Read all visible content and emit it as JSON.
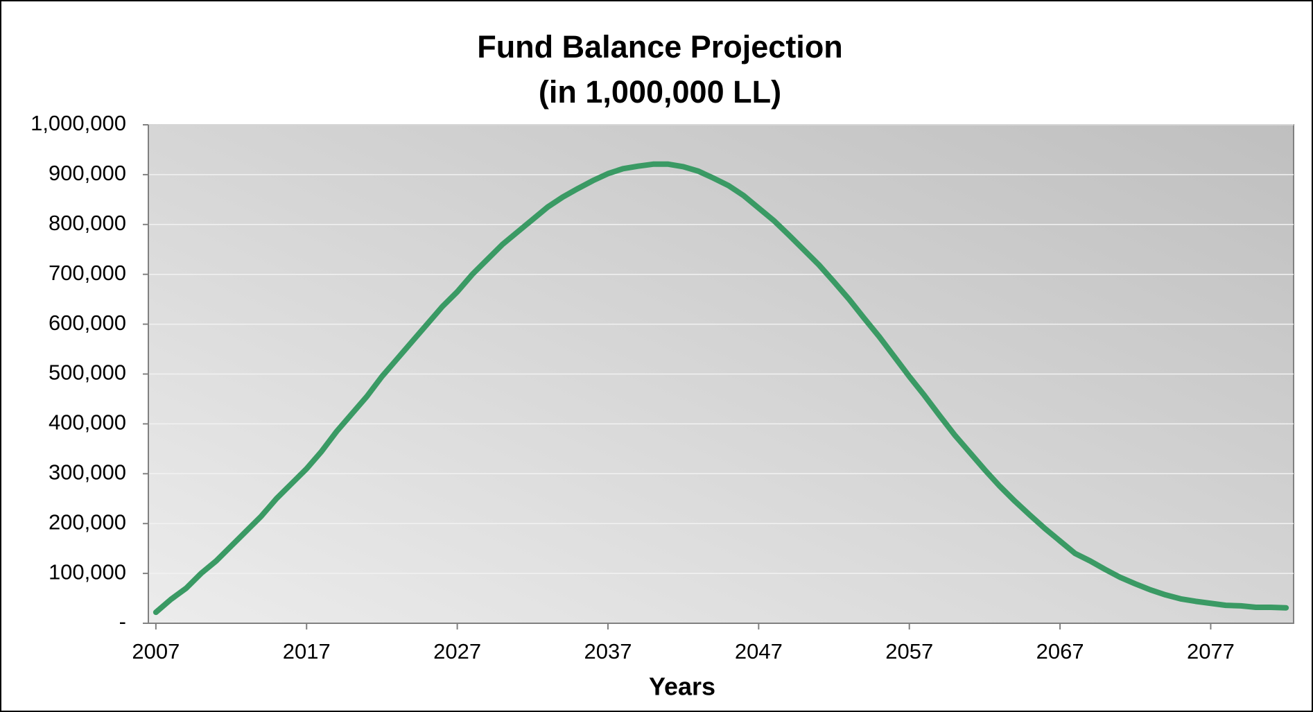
{
  "chart_data": {
    "type": "line",
    "title": "Fund Balance Projection",
    "subtitle": "(in 1,000,000 LL)",
    "x_label": "Years",
    "x": [
      2007,
      2008,
      2009,
      2010,
      2011,
      2012,
      2013,
      2014,
      2015,
      2016,
      2017,
      2018,
      2019,
      2020,
      2021,
      2022,
      2023,
      2024,
      2025,
      2026,
      2027,
      2028,
      2029,
      2030,
      2031,
      2032,
      2033,
      2034,
      2035,
      2036,
      2037,
      2038,
      2039,
      2040,
      2041,
      2042,
      2043,
      2044,
      2045,
      2046,
      2047,
      2048,
      2049,
      2050,
      2051,
      2052,
      2053,
      2054,
      2055,
      2056,
      2057,
      2058,
      2059,
      2060,
      2061,
      2062,
      2063,
      2064,
      2065,
      2066,
      2067,
      2068,
      2069,
      2070,
      2071,
      2072,
      2073,
      2074,
      2075,
      2076,
      2077,
      2078,
      2079,
      2080,
      2081,
      2082
    ],
    "series": [
      {
        "name": "Fund Balance",
        "color": "#3a9a64",
        "values": [
          22000,
          48000,
          70000,
          100000,
          125000,
          155000,
          185000,
          215000,
          250000,
          280000,
          310000,
          345000,
          385000,
          420000,
          455000,
          495000,
          530000,
          565000,
          600000,
          635000,
          665000,
          700000,
          730000,
          760000,
          785000,
          810000,
          835000,
          855000,
          872000,
          888000,
          902000,
          912000,
          917000,
          921000,
          921000,
          916000,
          907000,
          893000,
          878000,
          858000,
          833000,
          808000,
          779000,
          749000,
          719000,
          685000,
          650000,
          612000,
          575000,
          535000,
          495000,
          457000,
          417000,
          378000,
          343000,
          308000,
          275000,
          245000,
          217000,
          190000,
          165000,
          140000,
          125000,
          108000,
          92000,
          79000,
          67000,
          57000,
          49000,
          44000,
          40000,
          36000,
          35000,
          32000,
          32000,
          31000
        ]
      }
    ],
    "xlim": [
      2006.5,
      2082.5
    ],
    "xticks": [
      2007,
      2017,
      2027,
      2037,
      2047,
      2057,
      2067,
      2077
    ],
    "ylim": [
      0,
      1000000
    ],
    "yticks": [
      {
        "value": 0,
        "label": "-"
      },
      {
        "value": 100000,
        "label": "100,000"
      },
      {
        "value": 200000,
        "label": "200,000"
      },
      {
        "value": 300000,
        "label": "300,000"
      },
      {
        "value": 400000,
        "label": "400,000"
      },
      {
        "value": 500000,
        "label": "500,000"
      },
      {
        "value": 600000,
        "label": "600,000"
      },
      {
        "value": 700000,
        "label": "700,000"
      },
      {
        "value": 800000,
        "label": "800,000"
      },
      {
        "value": 900000,
        "label": "900,000"
      },
      {
        "value": 1000000,
        "label": "1,000,000"
      }
    ],
    "grid": true
  }
}
